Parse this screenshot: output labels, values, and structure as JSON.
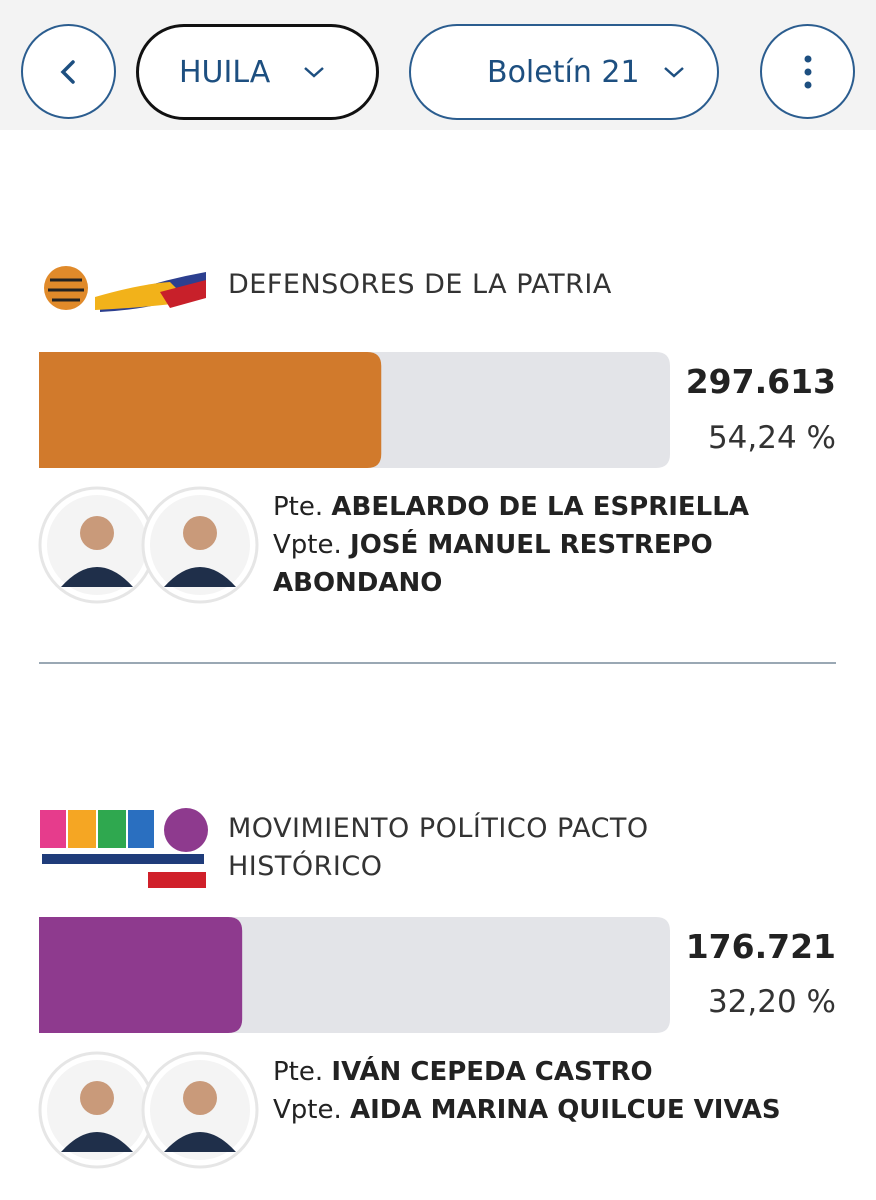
{
  "header": {
    "region": "HUILA",
    "bulletin": "Boletín 21"
  },
  "candidates": [
    {
      "party": "DEFENSORES DE LA PATRIA",
      "votes": "297.613",
      "percent": 54.24,
      "percent_label": "54,24 %",
      "color": "#d17a2c",
      "president_prefix": "Pte.",
      "president": "ABELARDO DE LA ESPRIELLA",
      "vp_prefix": "Vpte.",
      "vp": "JOSÉ MANUEL RESTREPO ABONDANO"
    },
    {
      "party": "MOVIMIENTO POLÍTICO PACTO HISTÓRICO",
      "votes": "176.721",
      "percent": 32.2,
      "percent_label": "32,20 %",
      "color": "#8e3a8e",
      "president_prefix": "Pte.",
      "president": "IVÁN CEPEDA CASTRO",
      "vp_prefix": "Vpte.",
      "vp": "AIDA MARINA QUILCUE VIVAS"
    }
  ]
}
